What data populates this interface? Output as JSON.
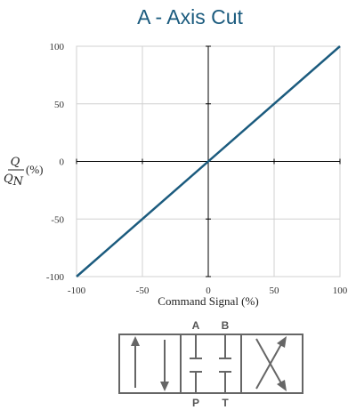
{
  "chart_data": {
    "type": "line",
    "title": "A - Axis Cut",
    "xlabel": "Command Signal (%)",
    "ylabel": {
      "numerator": "Q",
      "denominator": "Q",
      "denominator_sub": "N",
      "unit": "(%)"
    },
    "x": [
      -100,
      100
    ],
    "series": [
      {
        "values": [
          -100,
          100
        ]
      }
    ],
    "xlim": [
      -100,
      100
    ],
    "ylim": [
      -100,
      100
    ],
    "xticks": [
      -100,
      -50,
      0,
      50,
      100
    ],
    "yticks": [
      -100,
      -50,
      0,
      50,
      100
    ],
    "grid": true,
    "colors": {
      "line": "#1b5b7e",
      "grid": "#d0d0d0",
      "axis": "#000000"
    }
  },
  "valve_symbol": {
    "ports_top": [
      "A",
      "B"
    ],
    "ports_bottom": [
      "P",
      "T"
    ],
    "color": "#666666"
  }
}
